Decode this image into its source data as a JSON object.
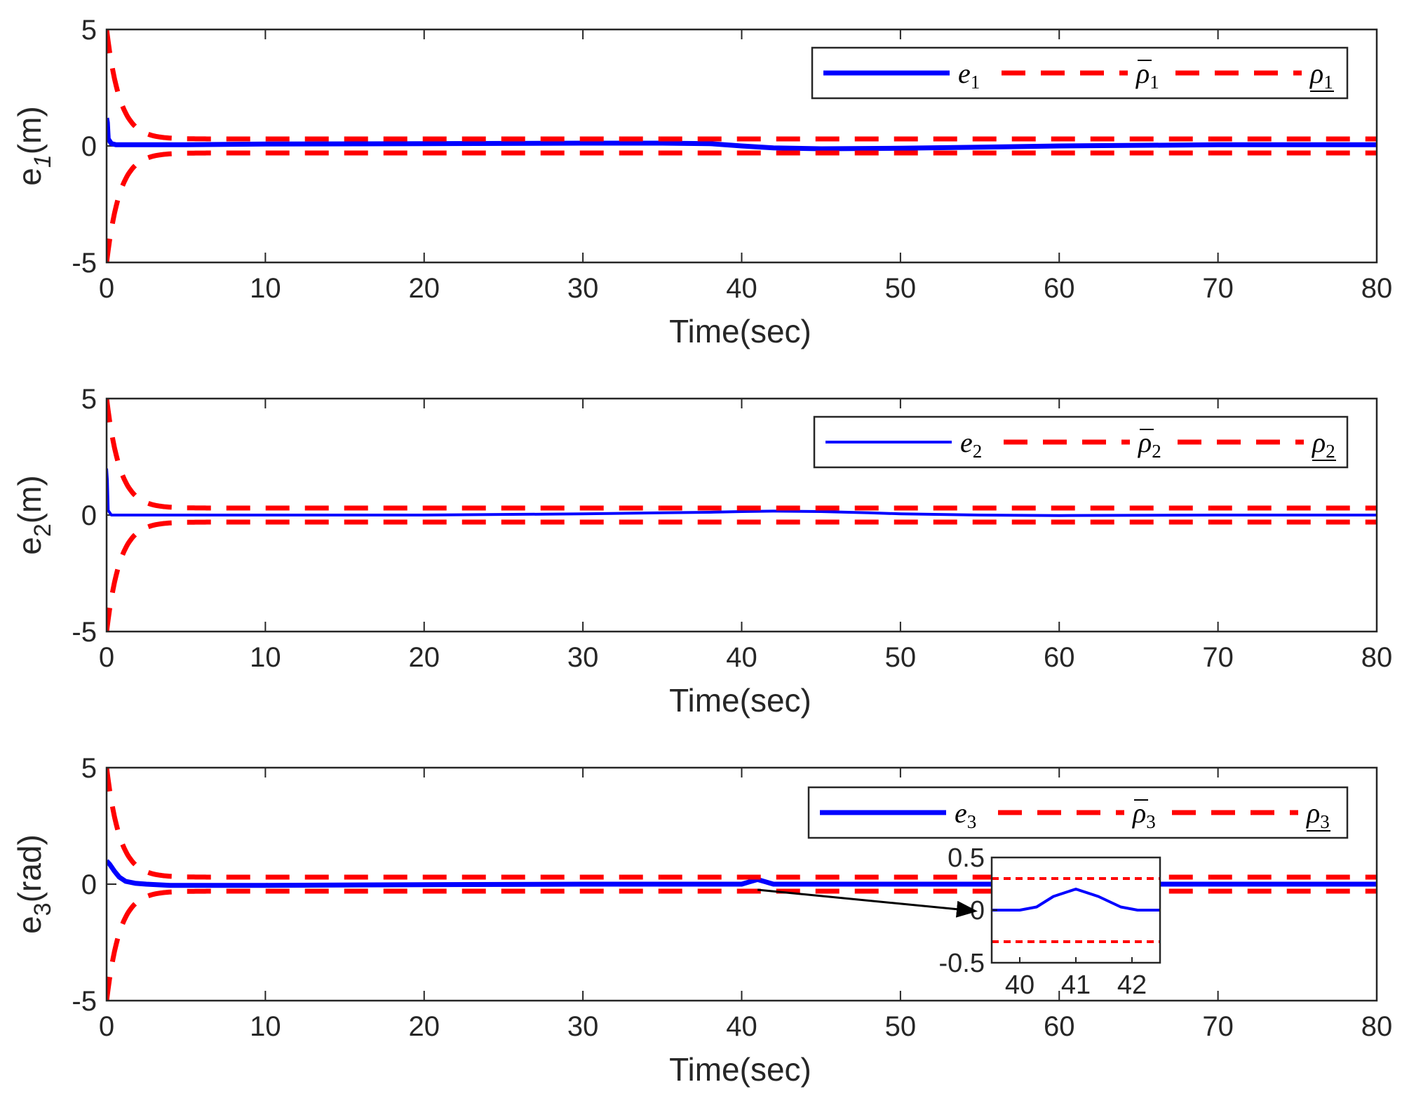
{
  "figure_type": "multi-panel time-series",
  "colors": {
    "error": "#0000ff",
    "bound": "#ff0000",
    "axis": "#262626",
    "arrow": "#000000"
  },
  "chart_data": [
    {
      "type": "line",
      "ylabel": {
        "base": "e",
        "sub": "1",
        "unit": "(m)"
      },
      "xlabel": "Time(sec)",
      "xlim": [
        0,
        80
      ],
      "ylim": [
        -5,
        5
      ],
      "xticks": [
        "0",
        "10",
        "20",
        "30",
        "40",
        "50",
        "60",
        "70",
        "80"
      ],
      "yticks": [
        "5",
        "0",
        "-5"
      ],
      "legend": {
        "position": "top-right",
        "entries": [
          {
            "label": "e",
            "sub": "1",
            "deco": "none",
            "style": "solid blue"
          },
          {
            "label": "ρ",
            "sub": "1",
            "deco": "overline",
            "style": "dashed red"
          },
          {
            "label": "ρ",
            "sub": "1",
            "deco": "underline",
            "style": "dashed red"
          }
        ]
      },
      "series": [
        {
          "name": "e1",
          "color": "#0000ff",
          "x": [
            0,
            0.05,
            0.1,
            0.3,
            0.6,
            1,
            2,
            5,
            10,
            20,
            30,
            35,
            38,
            40,
            42,
            45,
            50,
            55,
            60,
            70,
            80
          ],
          "y": [
            1.2,
            1.0,
            0.3,
            0.1,
            0.05,
            0.05,
            0.05,
            0.05,
            0.08,
            0.1,
            0.12,
            0.12,
            0.1,
            0.0,
            -0.08,
            -0.12,
            -0.1,
            -0.05,
            0.0,
            0.05,
            0.05
          ]
        },
        {
          "name": "ρ̄1",
          "color": "#ff0000",
          "bound": "upper",
          "rho0": 5,
          "rhoInf": 0.3,
          "rate": 1.2
        },
        {
          "name": "ρ1",
          "color": "#ff0000",
          "bound": "lower",
          "rho0": 5,
          "rhoInf": 0.3,
          "rate": 1.2
        }
      ]
    },
    {
      "type": "line",
      "ylabel": {
        "base": "e",
        "sub": "2",
        "unit": "(m)"
      },
      "xlabel": "Time(sec)",
      "xlim": [
        0,
        80
      ],
      "ylim": [
        -5,
        5
      ],
      "xticks": [
        "0",
        "10",
        "20",
        "30",
        "40",
        "50",
        "60",
        "70",
        "80"
      ],
      "yticks": [
        "5",
        "0",
        "-5"
      ],
      "legend": {
        "position": "top-right",
        "entries": [
          {
            "label": "e",
            "sub": "2",
            "deco": "none",
            "style": "solid blue"
          },
          {
            "label": "ρ",
            "sub": "2",
            "deco": "overline",
            "style": "dashed red"
          },
          {
            "label": "ρ",
            "sub": "2",
            "deco": "underline",
            "style": "dashed red"
          }
        ]
      },
      "series": [
        {
          "name": "e2",
          "color": "#0000ff",
          "x": [
            0,
            0.05,
            0.1,
            0.3,
            1,
            5,
            10,
            20,
            30,
            35,
            38,
            40,
            42,
            45,
            48,
            50,
            55,
            60,
            70,
            80
          ],
          "y": [
            2.0,
            1.5,
            0.2,
            0.0,
            0.0,
            0.0,
            0.0,
            0.0,
            0.05,
            0.1,
            0.12,
            0.15,
            0.17,
            0.15,
            0.1,
            0.05,
            0.0,
            -0.02,
            0.0,
            0.0
          ]
        },
        {
          "name": "ρ̄2",
          "color": "#ff0000",
          "bound": "upper",
          "rho0": 5,
          "rhoInf": 0.3,
          "rate": 1.2
        },
        {
          "name": "ρ2",
          "color": "#ff0000",
          "bound": "lower",
          "rho0": 5,
          "rhoInf": 0.3,
          "rate": 1.2
        }
      ]
    },
    {
      "type": "line",
      "ylabel": {
        "base": "e",
        "sub": "3",
        "unit": "(rad)"
      },
      "xlabel": "Time(sec)",
      "xlim": [
        0,
        80
      ],
      "ylim": [
        -5,
        5
      ],
      "xticks": [
        "0",
        "10",
        "20",
        "30",
        "40",
        "50",
        "60",
        "70",
        "80"
      ],
      "yticks": [
        "5",
        "0",
        "-5"
      ],
      "legend": {
        "position": "top-right",
        "entries": [
          {
            "label": "e",
            "sub": "3",
            "deco": "none",
            "style": "solid blue"
          },
          {
            "label": "ρ",
            "sub": "3",
            "deco": "overline",
            "style": "dashed red"
          },
          {
            "label": "ρ",
            "sub": "3",
            "deco": "underline",
            "style": "dashed red"
          }
        ]
      },
      "series": [
        {
          "name": "e3",
          "color": "#0000ff",
          "x": [
            0,
            0.2,
            0.5,
            0.8,
            1.2,
            1.8,
            2.5,
            4,
            10,
            20,
            30,
            40,
            40.5,
            41,
            41.5,
            42,
            43,
            50,
            60,
            70,
            80
          ],
          "y": [
            1.0,
            0.85,
            0.55,
            0.3,
            0.12,
            0.04,
            0.0,
            -0.05,
            -0.05,
            -0.02,
            0.0,
            0.0,
            0.1,
            0.2,
            0.1,
            0.0,
            0.0,
            0.0,
            0.0,
            0.0,
            0.0
          ]
        },
        {
          "name": "ρ̄3",
          "color": "#ff0000",
          "bound": "upper",
          "rho0": 5,
          "rhoInf": 0.3,
          "rate": 1.2
        },
        {
          "name": "ρ3",
          "color": "#ff0000",
          "bound": "lower",
          "rho0": 5,
          "rhoInf": 0.3,
          "rate": 1.2
        }
      ],
      "inset": {
        "type": "line",
        "xlim": [
          39.5,
          42.5
        ],
        "ylim": [
          -0.5,
          0.5
        ],
        "xticks": [
          "40",
          "41",
          "42"
        ],
        "yticks": [
          "0.5",
          "0",
          "-0.5"
        ],
        "bounds": [
          0.3,
          -0.3
        ],
        "series": {
          "x": [
            39.5,
            40,
            40.3,
            40.6,
            41,
            41.4,
            41.8,
            42.1,
            42.5
          ],
          "y": [
            0.0,
            0.0,
            0.03,
            0.13,
            0.2,
            0.13,
            0.03,
            0.0,
            0.0
          ]
        }
      }
    }
  ]
}
